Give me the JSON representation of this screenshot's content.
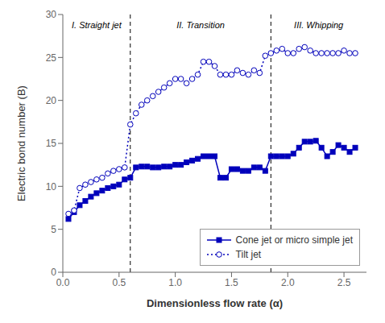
{
  "chart_data": {
    "type": "line",
    "x": [
      0.05,
      0.1,
      0.15,
      0.2,
      0.25,
      0.3,
      0.35,
      0.4,
      0.45,
      0.5,
      0.55,
      0.6,
      0.65,
      0.7,
      0.75,
      0.8,
      0.85,
      0.9,
      0.95,
      1.0,
      1.05,
      1.1,
      1.15,
      1.2,
      1.25,
      1.3,
      1.35,
      1.4,
      1.45,
      1.5,
      1.55,
      1.6,
      1.65,
      1.7,
      1.75,
      1.8,
      1.85,
      1.9,
      1.95,
      2.0,
      2.05,
      2.1,
      2.15,
      2.2,
      2.25,
      2.3,
      2.35,
      2.4,
      2.45,
      2.5,
      2.55,
      2.6
    ],
    "series": [
      {
        "name": "Cone jet or micro simple jet",
        "color": "#0000BB",
        "marker": "square",
        "line_style": "solid",
        "values": [
          6.2,
          7.0,
          7.8,
          8.3,
          8.8,
          9.2,
          9.5,
          9.8,
          10.0,
          10.2,
          10.8,
          11.0,
          12.2,
          12.3,
          12.3,
          12.2,
          12.2,
          12.3,
          12.3,
          12.5,
          12.5,
          12.8,
          13.0,
          13.2,
          13.5,
          13.5,
          13.5,
          11.0,
          11.0,
          12.0,
          12.0,
          11.8,
          11.8,
          12.2,
          12.2,
          11.8,
          13.5,
          13.5,
          13.5,
          13.5,
          13.8,
          14.5,
          15.2,
          15.2,
          15.3,
          14.5,
          13.5,
          14.0,
          14.8,
          14.5,
          14.0,
          14.5
        ]
      },
      {
        "name": "Tilt jet",
        "color": "#0000BB",
        "marker": "circle",
        "line_style": "dotted",
        "values": [
          6.8,
          7.2,
          9.8,
          10.2,
          10.5,
          10.8,
          11.0,
          11.5,
          11.8,
          12.0,
          12.2,
          17.2,
          18.5,
          19.5,
          20.0,
          20.5,
          21.0,
          21.5,
          22.0,
          22.5,
          22.5,
          22.0,
          22.5,
          23.0,
          24.5,
          24.5,
          24.0,
          23.0,
          23.0,
          23.0,
          23.5,
          23.2,
          23.0,
          23.5,
          23.2,
          25.2,
          25.5,
          25.8,
          26.0,
          25.5,
          25.5,
          26.0,
          26.2,
          25.8,
          25.5,
          25.5,
          25.5,
          25.5,
          25.5,
          25.8,
          25.5,
          25.5
        ]
      }
    ],
    "xlim": [
      0,
      2.7
    ],
    "ylim": [
      0,
      30
    ],
    "xticks": [
      {
        "value": 0,
        "label": "0.0"
      },
      0.5,
      {
        "value": 1,
        "label": "1.0"
      },
      1.5,
      {
        "value": 2,
        "label": "2.0"
      },
      2.5
    ],
    "yticks": [
      0,
      5,
      10,
      15,
      20,
      25,
      30
    ],
    "xlabel": "Dimensionless flow rate (α)",
    "ylabel": "Electric bond number (B)",
    "vlines": [
      0.6,
      1.85
    ],
    "annotations": [
      {
        "text": "I. Straight jet",
        "x": 0.3,
        "y": 29.5
      },
      {
        "text": "II. Transition",
        "x": 1.225,
        "y": 29.5
      },
      {
        "text": "III. Whipping",
        "x": 2.275,
        "y": 29.5
      }
    ],
    "legend": "lower right",
    "grid": false
  }
}
